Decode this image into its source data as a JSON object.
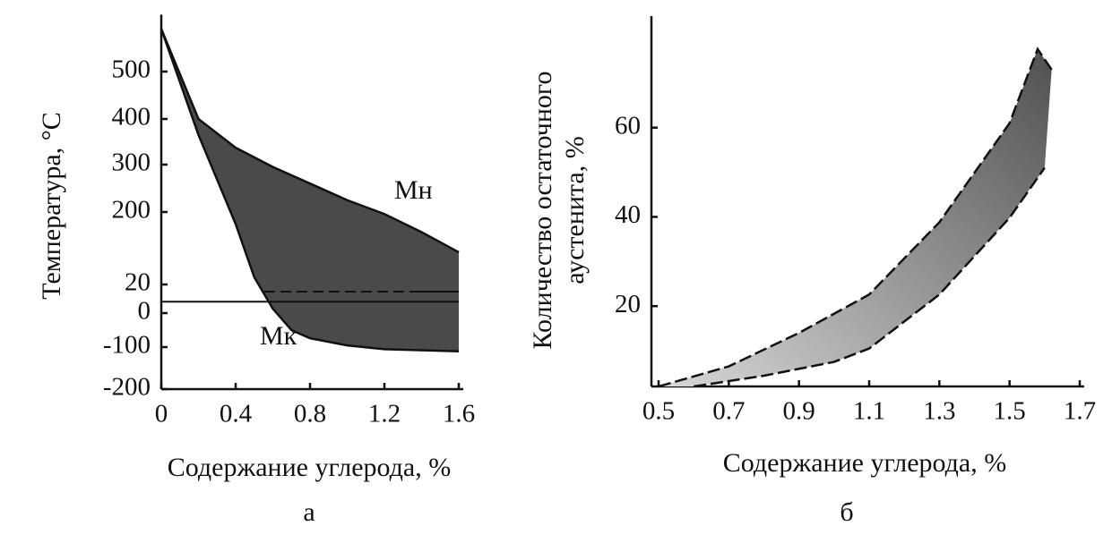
{
  "chart_data": [
    {
      "type": "band",
      "ylabel": "Температура, °С",
      "xlabel": "Содержание углерода, %",
      "panel": "а",
      "xlim": [
        0,
        1.6
      ],
      "xticks": [
        0,
        0.4,
        0.8,
        1.2,
        1.6
      ],
      "ylim": [
        -200,
        620
      ],
      "yticks": [
        500,
        400,
        300,
        200,
        20,
        0,
        -100,
        -200
      ],
      "hlines": [
        15,
        8
      ],
      "color": "#4a4a4a",
      "series": [
        {
          "name": "Mн",
          "x": [
            0,
            0.2,
            0.4,
            0.6,
            0.8,
            1.0,
            1.2,
            1.4,
            1.6
          ],
          "values": [
            590,
            400,
            337,
            295,
            260,
            225,
            195,
            150,
            100
          ]
        },
        {
          "name": "Mк",
          "x": [
            0,
            0.2,
            0.4,
            0.5,
            0.6,
            0.7,
            0.8,
            1.0,
            1.2,
            1.6
          ],
          "values": [
            590,
            365,
            170,
            38,
            3,
            -50,
            -74,
            -95,
            -105,
            -110
          ]
        }
      ]
    },
    {
      "type": "band",
      "ylabel": [
        "Количество остаточного",
        "аустенита, %"
      ],
      "xlabel": "Содержание углерода, %",
      "panel": "б",
      "xlim": [
        0.5,
        1.7
      ],
      "xticks": [
        0.5,
        0.7,
        0.9,
        1.1,
        1.3,
        1.5,
        1.7
      ],
      "ylim": [
        2,
        85
      ],
      "yticks": [
        20,
        40,
        60
      ],
      "color": "#6a6a6a",
      "series": [
        {
          "x": [
            0.5,
            0.7,
            0.9,
            1.1,
            1.3,
            1.5,
            1.58,
            1.62
          ],
          "values": [
            2,
            6.5,
            14,
            22.6,
            38.8,
            61,
            77.6,
            73
          ]
        },
        {
          "x": [
            0.6,
            0.8,
            1.0,
            1.1,
            1.3,
            1.5,
            1.6
          ],
          "values": [
            2,
            4.4,
            7.5,
            10.5,
            22.6,
            39.8,
            51
          ]
        }
      ]
    }
  ]
}
